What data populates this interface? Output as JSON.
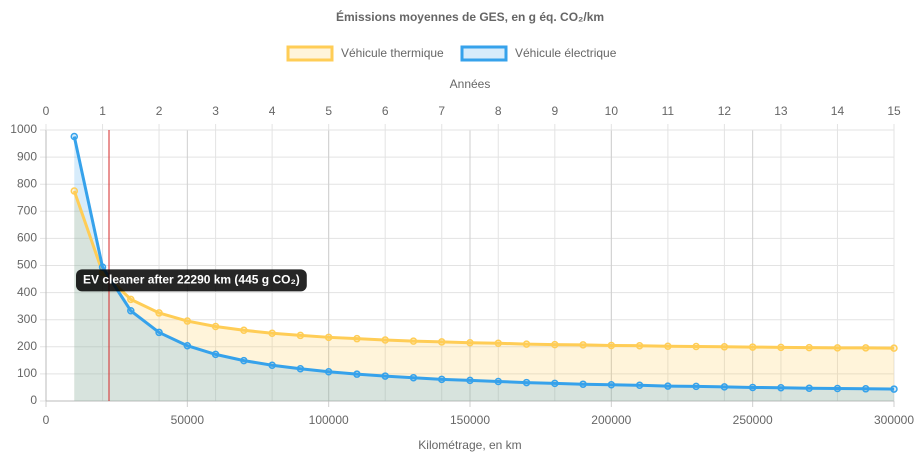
{
  "chart_data": {
    "type": "line",
    "title": "Émissions moyennes de GES, en g éq. CO₂/km",
    "x_label": "Kilométrage, en km",
    "x2_label": "Années",
    "x": [
      10000,
      20000,
      30000,
      40000,
      50000,
      60000,
      70000,
      80000,
      90000,
      100000,
      110000,
      120000,
      130000,
      140000,
      150000,
      160000,
      170000,
      180000,
      190000,
      200000,
      210000,
      220000,
      230000,
      240000,
      250000,
      260000,
      270000,
      280000,
      290000,
      300000
    ],
    "series": [
      {
        "name": "Véhicule thermique",
        "color": "#ffcd56",
        "fill": "rgba(255,205,86,0.22)",
        "values": [
          775,
          475,
          375,
          325,
          295,
          275,
          261,
          250,
          242,
          235,
          230,
          225,
          221,
          218,
          215,
          213,
          210,
          208,
          207,
          205,
          204,
          202,
          201,
          200,
          199,
          198,
          197,
          196,
          196,
          195
        ]
      },
      {
        "name": "Véhicule électrique",
        "color": "#36a2eb",
        "fill": "rgba(54,162,235,0.2)",
        "values": [
          976,
          494,
          333,
          253,
          204,
          172,
          149,
          132,
          119,
          108,
          99,
          92,
          86,
          80,
          76,
          72,
          68,
          65,
          62,
          60,
          58,
          55,
          54,
          52,
          50,
          49,
          47,
          46,
          45,
          44
        ]
      }
    ],
    "xlim": [
      0,
      300000
    ],
    "xticks": [
      0,
      50000,
      100000,
      150000,
      200000,
      250000,
      300000
    ],
    "x2lim": [
      0,
      15
    ],
    "x2ticks": [
      0,
      1,
      2,
      3,
      4,
      5,
      6,
      7,
      8,
      9,
      10,
      11,
      12,
      13,
      14,
      15
    ],
    "ylim": [
      0,
      1000
    ],
    "yticks": [
      0,
      100,
      200,
      300,
      400,
      500,
      600,
      700,
      800,
      900,
      1000
    ],
    "grid": true,
    "legend": "top",
    "annotation": {
      "x": 22290,
      "y": 445,
      "label": "EV cleaner after 22290 km (445 g CO₂)",
      "color": "#d62728"
    }
  }
}
